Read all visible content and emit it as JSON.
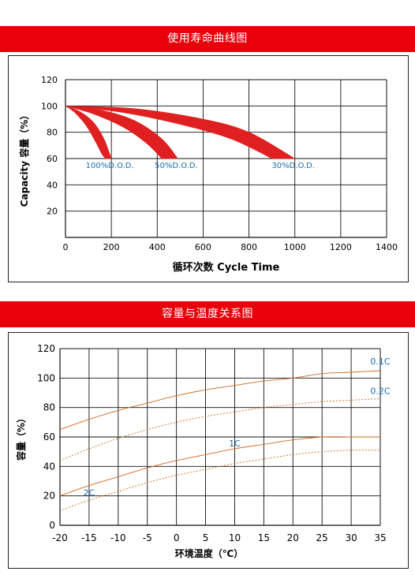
{
  "chart_data": [
    {
      "type": "area",
      "title": "使用寿命曲线图",
      "xlabel": "循环次数 Cycle Time",
      "ylabel": "Capacity 容量（%）",
      "xlim": [
        0,
        1400
      ],
      "ylim": [
        0,
        120
      ],
      "x_ticks": [
        "0",
        "200",
        "400",
        "600",
        "800",
        "1000",
        "1200",
        "1400"
      ],
      "y_ticks": [
        "20",
        "40",
        "60",
        "80",
        "100",
        "120"
      ],
      "grid": true,
      "color": "#e02020",
      "series": [
        {
          "name": "100%D.O.D.",
          "upper": [
            [
              0,
              100
            ],
            [
              60,
              96
            ],
            [
              120,
              88
            ],
            [
              165,
              76
            ],
            [
              190,
              65
            ],
            [
              200,
              60
            ]
          ],
          "lower": [
            [
              0,
              100
            ],
            [
              40,
              95
            ],
            [
              90,
              85
            ],
            [
              130,
              73
            ],
            [
              160,
              63
            ],
            [
              175,
              60
            ]
          ]
        },
        {
          "name": "50%D.O.D.",
          "upper": [
            [
              0,
              100
            ],
            [
              150,
              97
            ],
            [
              300,
              89
            ],
            [
              420,
              75
            ],
            [
              490,
              60
            ]
          ],
          "lower": [
            [
              0,
              100
            ],
            [
              120,
              94
            ],
            [
              250,
              84
            ],
            [
              350,
              72
            ],
            [
              420,
              60
            ]
          ]
        },
        {
          "name": "30%D.O.D.",
          "upper": [
            [
              0,
              100
            ],
            [
              300,
              98
            ],
            [
              600,
              90
            ],
            [
              800,
              80
            ],
            [
              1000,
              60
            ]
          ],
          "lower": [
            [
              0,
              100
            ],
            [
              250,
              95
            ],
            [
              500,
              86
            ],
            [
              720,
              75
            ],
            [
              900,
              60
            ]
          ]
        }
      ]
    },
    {
      "type": "line",
      "title": "容量与温度关系图",
      "xlabel": "环境温度（℃）",
      "ylabel": "容量（%）",
      "xlim": [
        -20,
        35
      ],
      "ylim": [
        0,
        120
      ],
      "x_ticks": [
        "-20",
        "-15",
        "-10",
        "-5",
        "0",
        "5",
        "10",
        "15",
        "20",
        "25",
        "30",
        "35"
      ],
      "y_ticks": [
        "0",
        "20",
        "40",
        "60",
        "80",
        "100",
        "120"
      ],
      "grid": true,
      "color": "#d2691e",
      "series": [
        {
          "name": "0.1C",
          "style": "solid",
          "points": [
            [
              -20,
              65
            ],
            [
              -15,
              72
            ],
            [
              -10,
              78
            ],
            [
              -5,
              83
            ],
            [
              0,
              88
            ],
            [
              5,
              92
            ],
            [
              10,
              95
            ],
            [
              15,
              98
            ],
            [
              20,
              100
            ],
            [
              25,
              103
            ],
            [
              30,
              104
            ],
            [
              35,
              105
            ]
          ]
        },
        {
          "name": "0.2C",
          "style": "dashed",
          "points": [
            [
              -20,
              44
            ],
            [
              -15,
              52
            ],
            [
              -10,
              59
            ],
            [
              -5,
              65
            ],
            [
              0,
              70
            ],
            [
              5,
              74
            ],
            [
              10,
              77
            ],
            [
              15,
              80
            ],
            [
              20,
              82
            ],
            [
              25,
              84
            ],
            [
              30,
              85
            ],
            [
              35,
              86
            ]
          ]
        },
        {
          "name": "1C",
          "style": "solid",
          "points": [
            [
              -20,
              20
            ],
            [
              -15,
              27
            ],
            [
              -10,
              33
            ],
            [
              -5,
              39
            ],
            [
              0,
              44
            ],
            [
              5,
              48
            ],
            [
              10,
              52
            ],
            [
              15,
              55
            ],
            [
              20,
              58
            ],
            [
              25,
              60
            ],
            [
              30,
              60
            ],
            [
              35,
              60
            ]
          ]
        },
        {
          "name": "2C",
          "style": "dashed",
          "points": [
            [
              -20,
              10
            ],
            [
              -15,
              17
            ],
            [
              -10,
              23
            ],
            [
              -5,
              29
            ],
            [
              0,
              34
            ],
            [
              5,
              38
            ],
            [
              10,
              42
            ],
            [
              15,
              45
            ],
            [
              20,
              48
            ],
            [
              25,
              50
            ],
            [
              30,
              51
            ],
            [
              35,
              51
            ]
          ]
        }
      ]
    }
  ]
}
